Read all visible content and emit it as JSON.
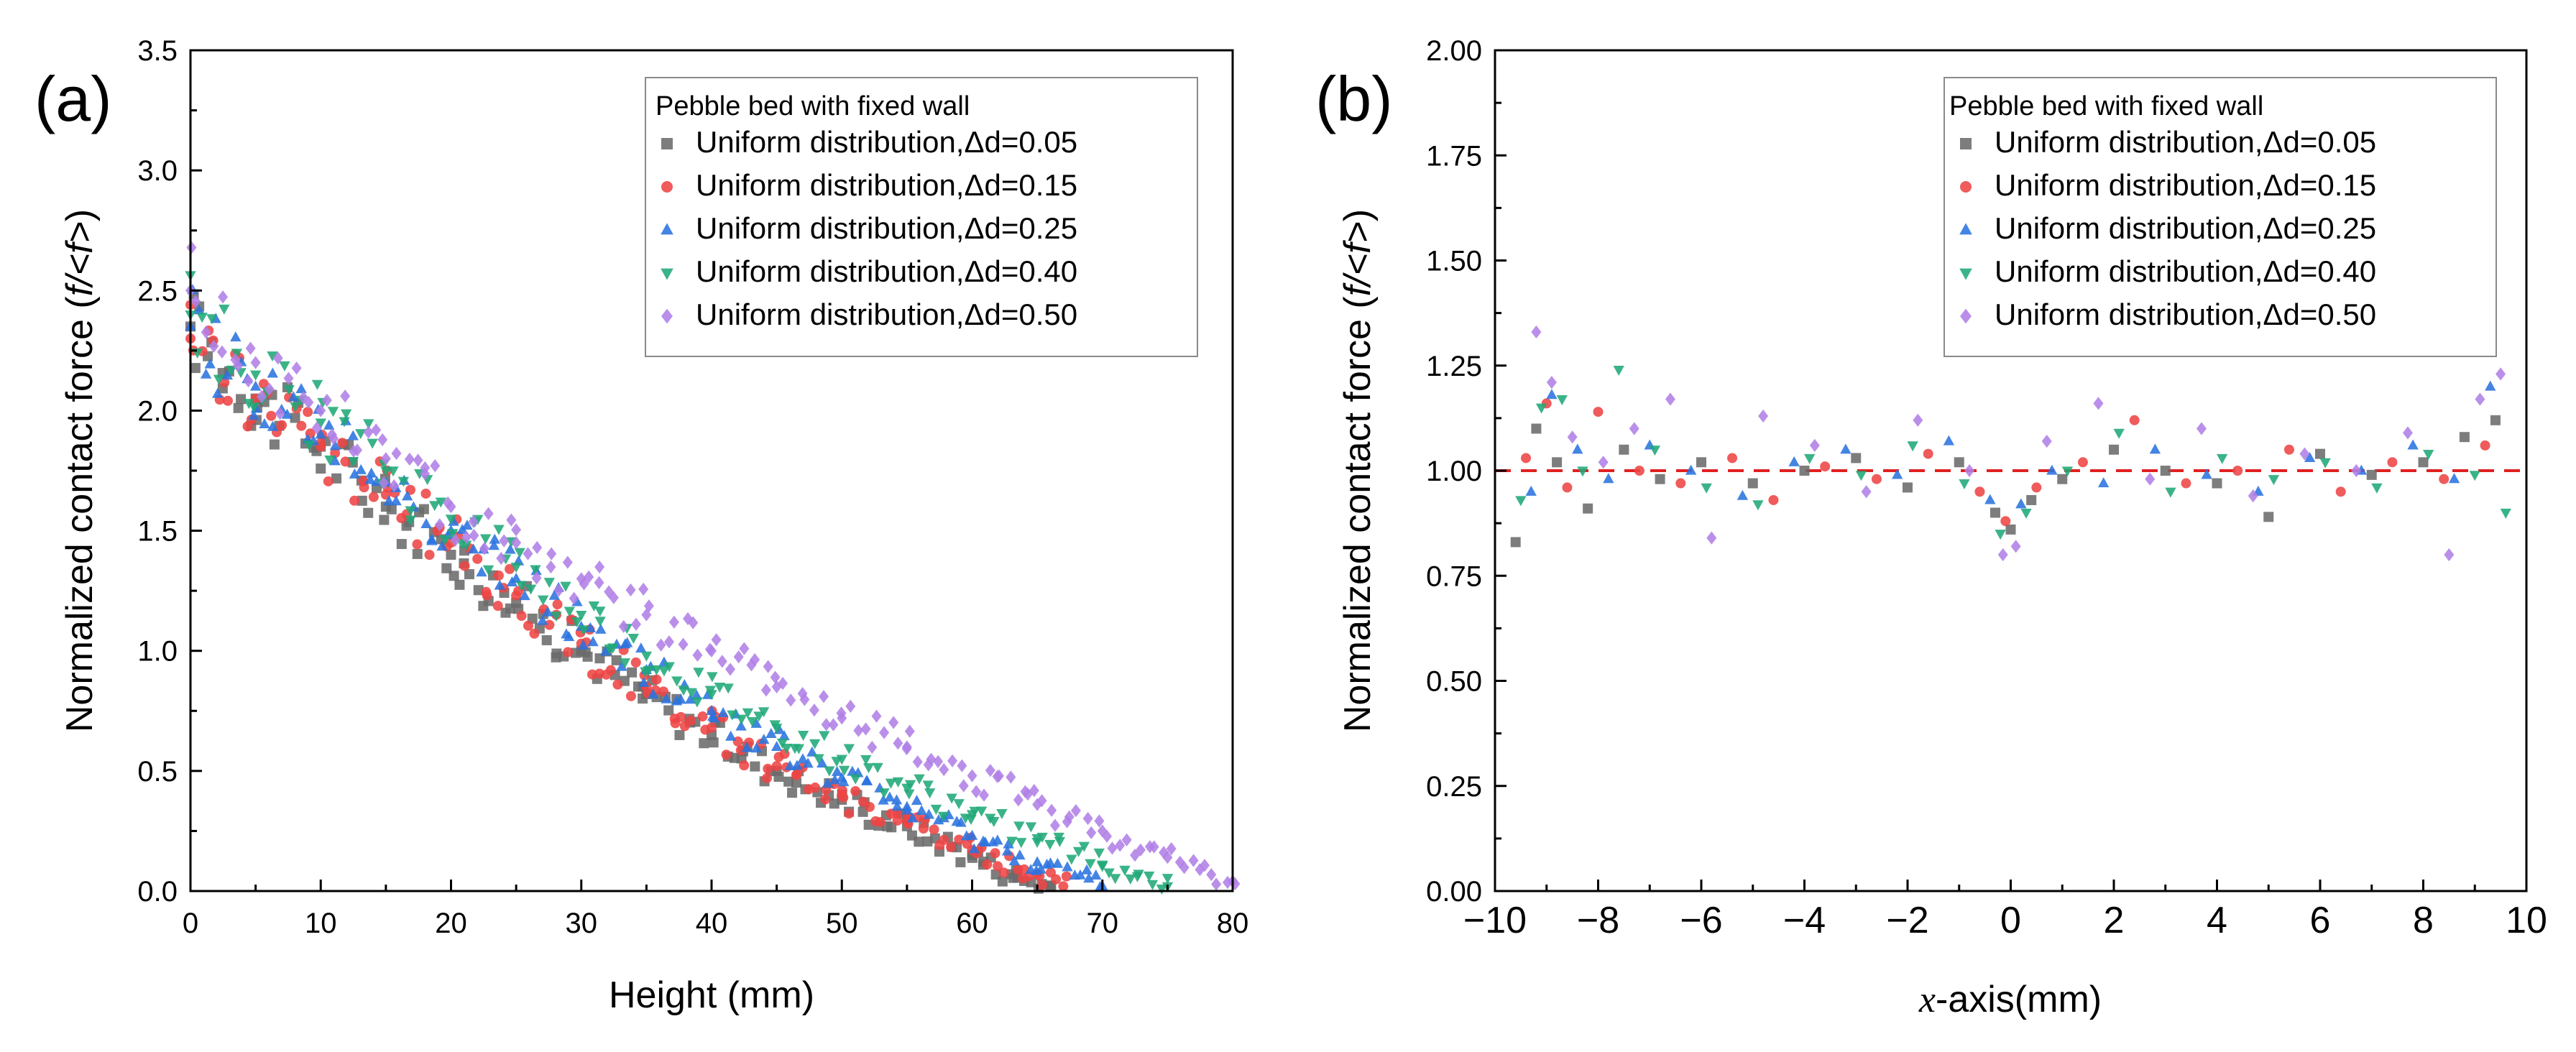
{
  "colors": {
    "series": [
      "#6b6b6b",
      "#ee4444",
      "#2a73df",
      "#20a877",
      "#b07fe6"
    ],
    "reference_line": "#e02020"
  },
  "chart_data": [
    {
      "type": "scatter",
      "panel_label": "(a)",
      "title": "",
      "xlabel": "Height (mm)",
      "ylabel": "Normalized contact force (f/<f>)",
      "ylabel_main": "Normalized contact force (",
      "ylabel_var": "f/<f>",
      "ylabel_end": ")",
      "xlim": [
        0,
        80
      ],
      "ylim": [
        0,
        3.5
      ],
      "xticks": [
        0,
        10,
        20,
        30,
        40,
        50,
        60,
        70,
        80
      ],
      "xtick_labels": [
        "0",
        "10",
        "20",
        "30",
        "40",
        "50",
        "60",
        "70",
        "80"
      ],
      "yticks": [
        0,
        0.5,
        1.0,
        1.5,
        2.0,
        2.5,
        3.0,
        3.5
      ],
      "ytick_labels": [
        "0.0",
        "0.5",
        "1.0",
        "1.5",
        "2.0",
        "2.5",
        "3.0",
        "3.5"
      ],
      "grid": false,
      "legend": {
        "title": "Pebble bed with fixed wall",
        "position": "top-right"
      },
      "series": [
        {
          "name": "Uniform distribution,Δd=0.05",
          "marker": "square",
          "x": [
            0,
            5,
            10,
            15,
            20,
            25,
            30,
            35,
            40,
            45,
            50,
            55,
            60,
            63,
            66
          ],
          "y": [
            2.35,
            2.05,
            1.85,
            1.6,
            1.4,
            1.2,
            1.0,
            0.82,
            0.65,
            0.5,
            0.38,
            0.27,
            0.15,
            0.07,
            0.02
          ]
        },
        {
          "name": "Uniform distribution,Δd=0.15",
          "marker": "circle",
          "x": [
            0,
            5,
            10,
            15,
            20,
            25,
            30,
            35,
            40,
            45,
            50,
            55,
            60,
            64,
            67
          ],
          "y": [
            2.3,
            2.05,
            1.85,
            1.65,
            1.45,
            1.23,
            1.03,
            0.85,
            0.68,
            0.52,
            0.4,
            0.29,
            0.17,
            0.09,
            0.02
          ]
        },
        {
          "name": "Uniform distribution,Δd=0.25",
          "marker": "triangle-up",
          "x": [
            0,
            5,
            10,
            15,
            20,
            25,
            30,
            35,
            40,
            45,
            50,
            55,
            60,
            65,
            70
          ],
          "y": [
            2.35,
            2.1,
            1.9,
            1.7,
            1.5,
            1.3,
            1.1,
            0.92,
            0.75,
            0.6,
            0.47,
            0.35,
            0.23,
            0.12,
            0.02
          ]
        },
        {
          "name": "Uniform distribution,Δd=0.40",
          "marker": "triangle-down",
          "x": [
            0,
            5,
            10,
            15,
            20,
            25,
            30,
            35,
            40,
            45,
            50,
            55,
            60,
            65,
            70,
            75
          ],
          "y": [
            2.4,
            2.15,
            1.95,
            1.75,
            1.55,
            1.35,
            1.15,
            0.98,
            0.82,
            0.68,
            0.55,
            0.43,
            0.32,
            0.22,
            0.11,
            0.02
          ]
        },
        {
          "name": "Uniform distribution,Δd=0.50",
          "marker": "diamond",
          "x": [
            0,
            5,
            10,
            15,
            20,
            25,
            30,
            35,
            40,
            45,
            50,
            55,
            60,
            65,
            70,
            75,
            80
          ],
          "y": [
            2.5,
            2.2,
            2.0,
            1.8,
            1.6,
            1.45,
            1.3,
            1.15,
            1.0,
            0.85,
            0.72,
            0.6,
            0.48,
            0.36,
            0.25,
            0.14,
            0.04
          ]
        }
      ]
    },
    {
      "type": "scatter",
      "panel_label": "(b)",
      "title": "",
      "xlabel": "x-axis(mm)",
      "xlabel_var": "x",
      "xlabel_rest": "-axis(mm)",
      "ylabel": "Normalized contact force (f/<f>)",
      "ylabel_main": "Normalized contact force (",
      "ylabel_var": "f/<f>",
      "ylabel_end": ")",
      "xlim": [
        -10,
        10
      ],
      "ylim": [
        0,
        2.0
      ],
      "xticks": [
        -10,
        -8,
        -6,
        -4,
        -2,
        0,
        2,
        4,
        6,
        8,
        10
      ],
      "xtick_labels": [
        "−10",
        "−8",
        "−6",
        "−4",
        "−2",
        "0",
        "2",
        "4",
        "6",
        "8",
        "10"
      ],
      "yticks": [
        0,
        0.25,
        0.5,
        0.75,
        1.0,
        1.25,
        1.5,
        1.75,
        2.0
      ],
      "ytick_labels": [
        "0.00",
        "0.25",
        "0.50",
        "0.75",
        "1.00",
        "1.25",
        "1.50",
        "1.75",
        "2.00"
      ],
      "grid": false,
      "reference_line": {
        "y": 1.0,
        "style": "dashed"
      },
      "legend": {
        "title": "Pebble bed with fixed wall",
        "position": "top-right"
      },
      "series": [
        {
          "name": "Uniform distribution,Δd=0.05",
          "marker": "square",
          "x": [
            -9.6,
            -9.2,
            -8.8,
            -8.2,
            -7.5,
            -6.8,
            -6.0,
            -5.0,
            -4.0,
            -3.0,
            -2.0,
            -1.0,
            -0.3,
            0,
            0.4,
            1.0,
            2.0,
            3.0,
            4.0,
            5.0,
            6.0,
            7.0,
            8.0,
            8.8,
            9.4
          ],
          "y": [
            0.83,
            1.1,
            1.02,
            0.91,
            1.05,
            0.98,
            1.02,
            0.97,
            1.0,
            1.03,
            0.96,
            1.02,
            0.9,
            0.86,
            0.93,
            0.98,
            1.05,
            1.0,
            0.97,
            0.89,
            1.04,
            0.99,
            1.02,
            1.08,
            1.12
          ]
        },
        {
          "name": "Uniform distribution,Δd=0.15",
          "marker": "circle",
          "x": [
            -9.4,
            -9.0,
            -8.6,
            -8.0,
            -7.2,
            -6.4,
            -5.4,
            -4.6,
            -3.6,
            -2.6,
            -1.6,
            -0.6,
            -0.1,
            0.5,
            1.4,
            2.4,
            3.4,
            4.4,
            5.4,
            6.4,
            7.4,
            8.4,
            9.2
          ],
          "y": [
            1.03,
            1.16,
            0.96,
            1.14,
            1.0,
            0.97,
            1.03,
            0.93,
            1.01,
            0.98,
            1.04,
            0.95,
            0.88,
            0.96,
            1.02,
            1.12,
            0.97,
            1.0,
            1.05,
            0.95,
            1.02,
            0.98,
            1.06
          ]
        },
        {
          "name": "Uniform distribution,Δd=0.25",
          "marker": "triangle-up",
          "x": [
            -9.3,
            -8.9,
            -8.4,
            -7.8,
            -7.0,
            -6.2,
            -5.2,
            -4.2,
            -3.2,
            -2.2,
            -1.2,
            -0.4,
            0.2,
            0.8,
            1.8,
            2.8,
            3.8,
            4.8,
            5.8,
            6.8,
            7.8,
            8.6,
            9.3
          ],
          "y": [
            0.95,
            1.18,
            1.05,
            0.98,
            1.06,
            1.0,
            0.94,
            1.02,
            1.05,
            0.99,
            1.07,
            0.93,
            0.92,
            1.0,
            0.97,
            1.05,
            0.99,
            0.95,
            1.03,
            1.0,
            1.06,
            0.98,
            1.2
          ]
        },
        {
          "name": "Uniform distribution,Δd=0.40",
          "marker": "triangle-down",
          "x": [
            -9.5,
            -9.1,
            -8.7,
            -8.3,
            -7.6,
            -6.9,
            -5.9,
            -4.9,
            -3.9,
            -2.9,
            -1.9,
            -0.9,
            -0.2,
            0.3,
            1.1,
            2.1,
            3.1,
            4.1,
            5.1,
            6.1,
            7.1,
            8.1,
            9.0,
            9.6
          ],
          "y": [
            0.93,
            1.15,
            1.17,
            1.0,
            1.24,
            1.05,
            0.96,
            0.92,
            1.03,
            0.99,
            1.06,
            0.97,
            0.85,
            0.9,
            1.0,
            1.09,
            0.95,
            1.03,
            0.98,
            1.02,
            0.96,
            1.04,
            0.99,
            0.9
          ]
        },
        {
          "name": "Uniform distribution,Δd=0.50",
          "marker": "diamond",
          "x": [
            -9.2,
            -8.9,
            -8.5,
            -7.9,
            -7.3,
            -6.6,
            -5.8,
            -4.8,
            -3.8,
            -2.8,
            -1.8,
            -0.8,
            -0.15,
            0.1,
            0.7,
            1.7,
            2.7,
            3.7,
            4.7,
            5.7,
            6.7,
            7.7,
            8.5,
            9.1,
            9.5
          ],
          "y": [
            1.33,
            1.21,
            1.08,
            1.02,
            1.1,
            1.17,
            0.84,
            1.13,
            1.06,
            0.95,
            1.12,
            1.0,
            0.8,
            0.82,
            1.07,
            1.16,
            0.98,
            1.1,
            0.94,
            1.04,
            1.0,
            1.09,
            0.8,
            1.17,
            1.23
          ]
        }
      ]
    }
  ]
}
